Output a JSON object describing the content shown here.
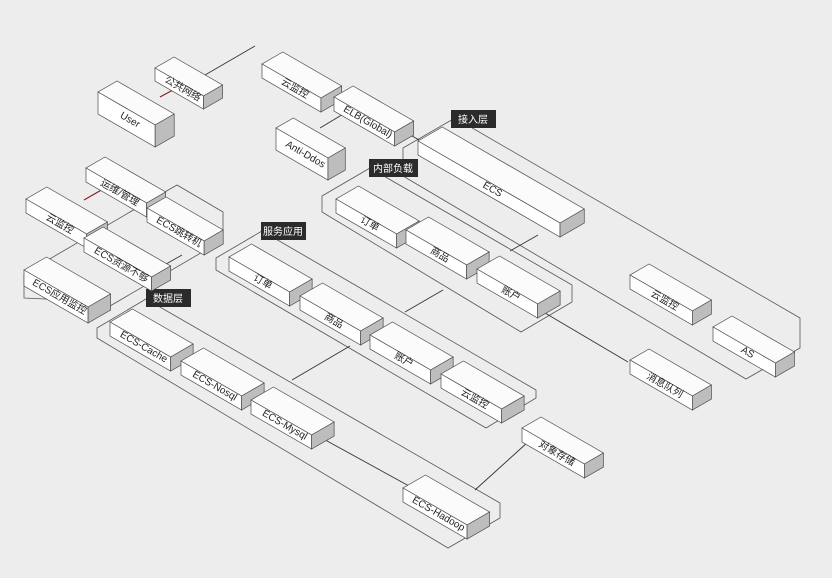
{
  "zones": {
    "access_layer": "接入层",
    "internal_lb": "内部负载",
    "service_app": "服务应用",
    "data_layer": "数据层"
  },
  "nodes": {
    "public_network": "公共网络",
    "user": "User",
    "cloud_monitor_top": "云监控",
    "elb_global": "ELB(Global)",
    "anti_ddos": "Anti-Ddos",
    "ops_management": "运维/管理",
    "cloud_monitor_left": "云监控",
    "ecs_jump_host": "ECS跳转机",
    "ecs_resource_shortage": "ECS资源不够",
    "ecs_app_monitor": "ECS应用监控",
    "ecs_main": "ECS",
    "lb_order": "订单",
    "lb_product": "商品",
    "lb_account": "账户",
    "app_order": "订单",
    "app_product": "商品",
    "app_account": "账户",
    "app_cloud_monitor": "云监控",
    "ecs_cache": "ECS-Cache",
    "ecs_nosql": "ECS-Nosql",
    "ecs_mysql": "ECS-Mysql",
    "ecs_hadoop": "ECS-Hadoop",
    "object_storage": "对象存储",
    "message_queue": "消息队列",
    "as_cloud_monitor": "云监控",
    "as": "AS"
  }
}
